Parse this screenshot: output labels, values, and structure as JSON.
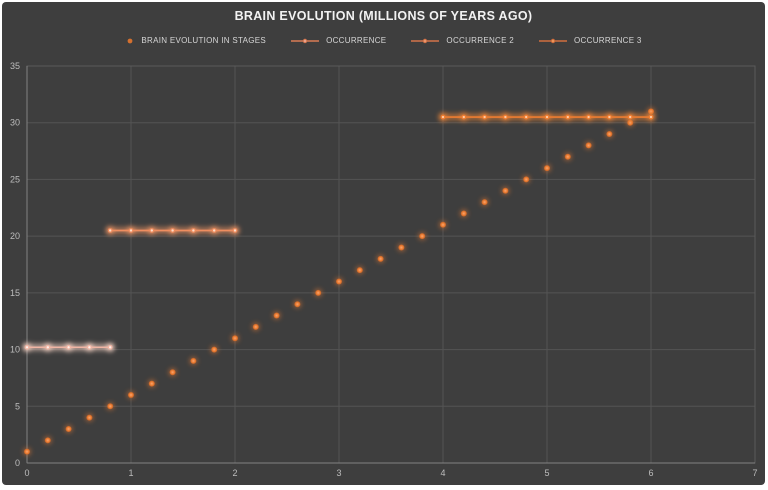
{
  "window": {
    "background": "#FFFFFF"
  },
  "chart": {
    "title": "BRAIN EVOLUTION (MILLIONS OF YEARS AGO)",
    "background": "#3E3E3E",
    "title_color": "#F2F2F2",
    "legend": [
      {
        "label": "BRAIN EVOLUTION IN STAGES",
        "marker": "dot",
        "color": "#D4702F",
        "accent": "#ED7D31"
      },
      {
        "label": "OCCURRENCE",
        "marker": "line-dot",
        "color": "#D87B55",
        "accent": "#EFB09C"
      },
      {
        "label": "OCCURRENCE 2",
        "marker": "line-dot",
        "color": "#D4744A",
        "accent": "#F0A276"
      },
      {
        "label": "OCCURRENCE 3",
        "marker": "line-dot",
        "color": "#D06F3E",
        "accent": "#F2A262"
      }
    ]
  },
  "chart_data": {
    "type": "scatter",
    "title": "BRAIN EVOLUTION (MILLIONS OF YEARS AGO)",
    "xlabel": "",
    "ylabel": "",
    "xlim": [
      0,
      7
    ],
    "ylim": [
      0,
      35
    ],
    "x_ticks": [
      0,
      1,
      2,
      3,
      4,
      5,
      6,
      7
    ],
    "y_ticks": [
      0,
      5,
      10,
      15,
      20,
      25,
      30,
      35
    ],
    "grid": true,
    "legend_position": "top-center",
    "tick_color": "#BDBDBD",
    "grid_color": "#545454",
    "axis_color": "#828282",
    "plot_border_color": "#5A5A5A",
    "series": [
      {
        "name": "BRAIN EVOLUTION IN STAGES",
        "kind": "scatter",
        "color": "#ED7D31",
        "center_color": "#F9A571",
        "glow": "#E87C35",
        "points": [
          [
            0,
            1
          ],
          [
            0.2,
            2
          ],
          [
            0.4,
            3
          ],
          [
            0.6,
            4
          ],
          [
            0.8,
            5
          ],
          [
            1,
            6
          ],
          [
            1.2,
            7
          ],
          [
            1.4,
            8
          ],
          [
            1.6,
            9
          ],
          [
            1.8,
            10
          ],
          [
            2,
            11
          ],
          [
            2.2,
            12
          ],
          [
            2.4,
            13
          ],
          [
            2.6,
            14
          ],
          [
            2.8,
            15
          ],
          [
            3,
            16
          ],
          [
            3.2,
            17
          ],
          [
            3.4,
            18
          ],
          [
            3.6,
            19
          ],
          [
            3.8,
            20
          ],
          [
            4,
            21
          ],
          [
            4.2,
            22
          ],
          [
            4.4,
            23
          ],
          [
            4.6,
            24
          ],
          [
            4.8,
            25
          ],
          [
            5,
            26
          ],
          [
            5.2,
            27
          ],
          [
            5.4,
            28
          ],
          [
            5.6,
            29
          ],
          [
            5.8,
            30
          ],
          [
            6,
            31
          ]
        ]
      },
      {
        "name": "OCCURRENCE",
        "kind": "line",
        "color": "#F0B5A4",
        "marker_color": "#FFEFE8",
        "glow": "#FFD9CB",
        "points": [
          [
            0,
            10.2
          ],
          [
            0.2,
            10.2
          ],
          [
            0.4,
            10.2
          ],
          [
            0.6,
            10.2
          ],
          [
            0.8,
            10.2
          ]
        ]
      },
      {
        "name": "OCCURRENCE 2",
        "kind": "line",
        "color": "#EE8D5F",
        "marker_color": "#FFDCC6",
        "glow": "#F29765",
        "points": [
          [
            0.8,
            20.5
          ],
          [
            1,
            20.5
          ],
          [
            1.2,
            20.5
          ],
          [
            1.4,
            20.5
          ],
          [
            1.6,
            20.5
          ],
          [
            1.8,
            20.5
          ],
          [
            2,
            20.5
          ]
        ]
      },
      {
        "name": "OCCURRENCE 3",
        "kind": "line",
        "color": "#ED7D31",
        "marker_color": "#FFC9A0",
        "glow": "#EF8638",
        "points": [
          [
            4,
            30.5
          ],
          [
            4.2,
            30.5
          ],
          [
            4.4,
            30.5
          ],
          [
            4.6,
            30.5
          ],
          [
            4.8,
            30.5
          ],
          [
            5,
            30.5
          ],
          [
            5.2,
            30.5
          ],
          [
            5.4,
            30.5
          ],
          [
            5.6,
            30.5
          ],
          [
            5.8,
            30.5
          ],
          [
            6,
            30.5
          ]
        ]
      }
    ]
  }
}
